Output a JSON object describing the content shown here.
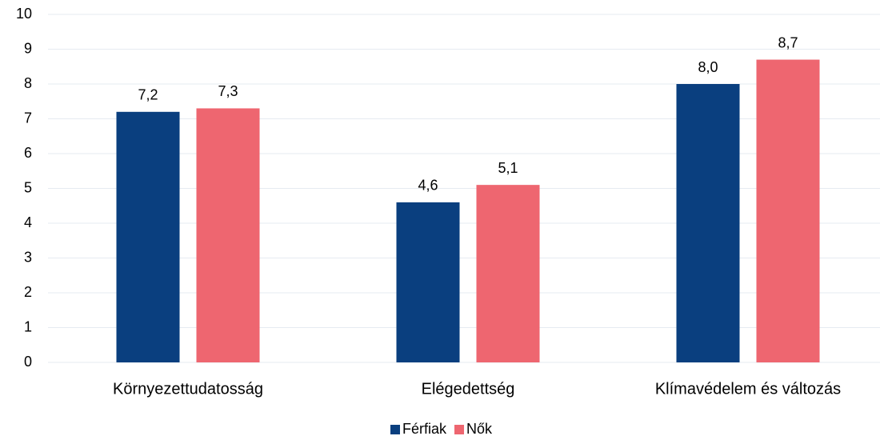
{
  "chart_data": {
    "type": "bar",
    "categories": [
      "Környezettudatosság",
      "Elégedettség",
      "Klímavédelem és változás"
    ],
    "series": [
      {
        "name": "Férfiak",
        "color": "#0a3f7f",
        "values": [
          7.2,
          4.6,
          8.0
        ],
        "value_labels": [
          "7,2",
          "4,6",
          "8,0"
        ]
      },
      {
        "name": "Nők",
        "color": "#ee6670",
        "values": [
          7.3,
          5.1,
          8.7
        ],
        "value_labels": [
          "7,3",
          "5,1",
          "8,7"
        ]
      }
    ],
    "ylim": [
      0,
      10
    ],
    "yticks": [
      0,
      1,
      2,
      3,
      4,
      5,
      6,
      7,
      8,
      9,
      10
    ],
    "grid": true,
    "legend": "bottom"
  }
}
